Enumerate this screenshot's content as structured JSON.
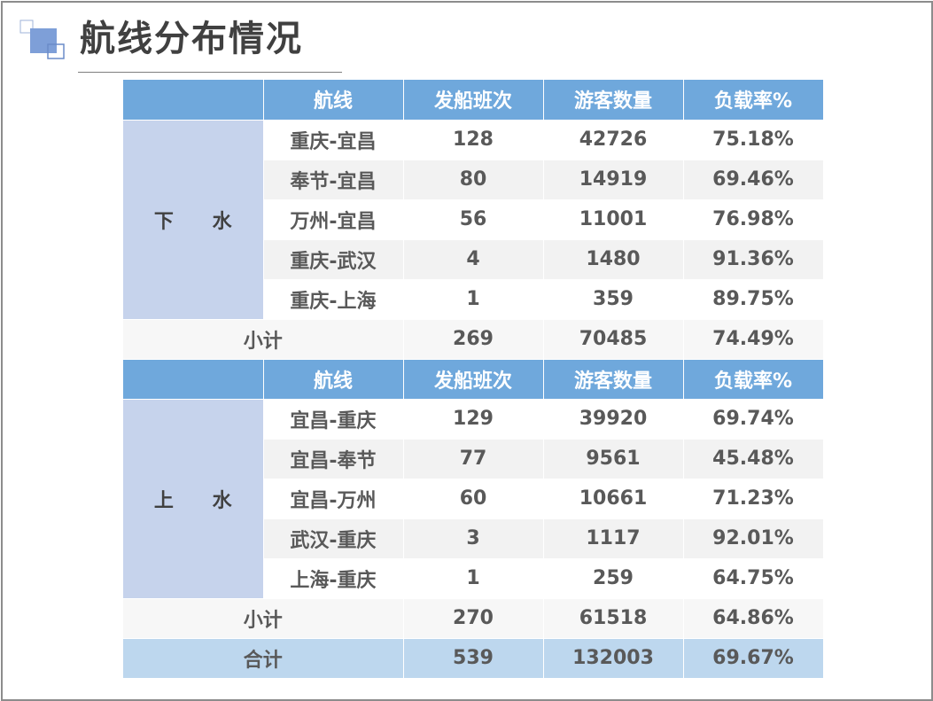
{
  "title": "航线分布情况",
  "colors": {
    "header": "#6fa8dc",
    "direction": "#c6d3ec",
    "total": "#bdd7ee",
    "row_alt": "#f2f2f2"
  },
  "table": {
    "headers": [
      "航线",
      "发船班次",
      "游客数量",
      "负载率%"
    ],
    "groups": [
      {
        "direction": "下 水",
        "rows": [
          [
            "重庆-宜昌",
            "128",
            "42726",
            "75.18%"
          ],
          [
            "奉节-宜昌",
            "80",
            "14919",
            "69.46%"
          ],
          [
            "万州-宜昌",
            "56",
            "11001",
            "76.98%"
          ],
          [
            "重庆-武汉",
            "4",
            "1480",
            "91.36%"
          ],
          [
            "重庆-上海",
            "1",
            "359",
            "89.75%"
          ]
        ],
        "subtotal": [
          "小计",
          "269",
          "70485",
          "74.49%"
        ]
      },
      {
        "direction": "上 水",
        "rows": [
          [
            "宜昌-重庆",
            "129",
            "39920",
            "69.74%"
          ],
          [
            "宜昌-奉节",
            "77",
            "9561",
            "45.48%"
          ],
          [
            "宜昌-万州",
            "60",
            "10661",
            "71.23%"
          ],
          [
            "武汉-重庆",
            "3",
            "1117",
            "92.01%"
          ],
          [
            "上海-重庆",
            "1",
            "259",
            "64.75%"
          ]
        ],
        "subtotal": [
          "小计",
          "270",
          "61518",
          "64.86%"
        ]
      }
    ],
    "total": [
      "合计",
      "539",
      "132003",
      "69.67%"
    ]
  }
}
